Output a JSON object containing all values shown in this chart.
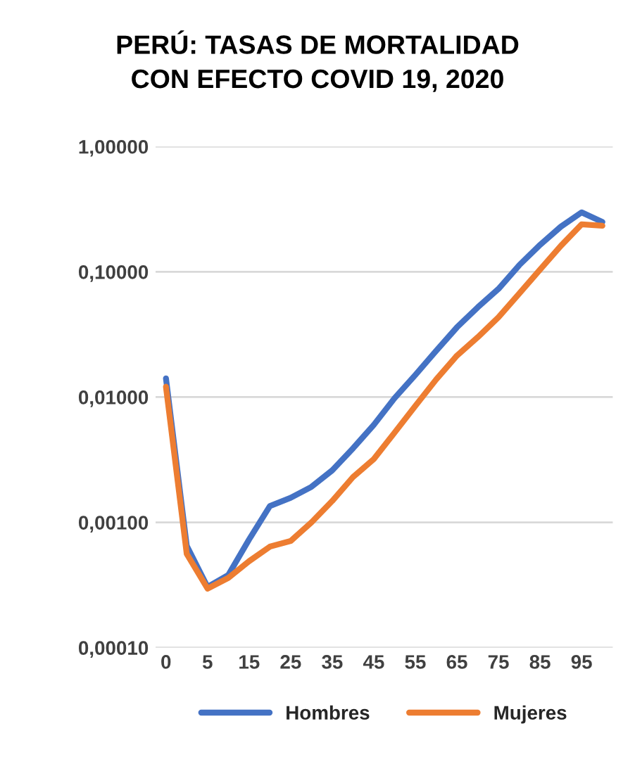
{
  "chart_data": {
    "type": "line",
    "title": "PERÚ: TASAS DE MORTALIDAD\nCON EFECTO COVID 19, 2020",
    "categories": [
      "0",
      null,
      "5",
      null,
      "15",
      null,
      "25",
      null,
      "35",
      null,
      "45",
      null,
      "55",
      null,
      "65",
      null,
      "75",
      null,
      "85",
      null,
      "95",
      null
    ],
    "series": [
      {
        "name": "Hombres",
        "color": "#4472c4",
        "values": [
          0.0141,
          0.00065,
          0.000305,
          0.00038,
          0.00073,
          0.00135,
          0.00157,
          0.00192,
          0.0026,
          0.0039,
          0.006,
          0.0098,
          0.015,
          0.0234,
          0.036,
          0.052,
          0.073,
          0.113,
          0.164,
          0.229,
          0.298,
          0.25
        ]
      },
      {
        "name": "Mujeres",
        "color": "#ed7d31",
        "values": [
          0.0121,
          0.00056,
          0.000296,
          0.00036,
          0.00049,
          0.00064,
          0.00071,
          0.001,
          0.00148,
          0.0023,
          0.0032,
          0.0052,
          0.0085,
          0.0138,
          0.0214,
          0.03,
          0.0434,
          0.067,
          0.104,
          0.161,
          0.239,
          0.233
        ]
      }
    ],
    "log": "y",
    "ylim": [
      0.0001,
      1
    ],
    "yticks": [
      {
        "value": 0.0001,
        "label": "0,00010"
      },
      {
        "value": 0.001,
        "label": "0,00100"
      },
      {
        "value": 0.01,
        "label": "0,01000"
      },
      {
        "value": 0.1,
        "label": "0,10000"
      },
      {
        "value": 1,
        "label": "1,00000"
      }
    ],
    "grid": "y",
    "legend": "bottom",
    "line_style": "solid"
  }
}
